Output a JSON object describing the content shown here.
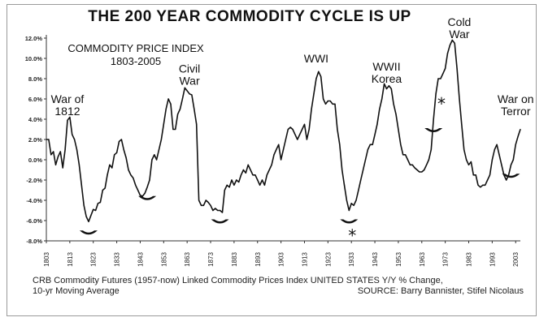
{
  "title": "THE 200 YEAR COMMODITY CYCLE IS UP",
  "index_label_line1": "COMMODITY PRICE INDEX",
  "index_label_line2": "1803-2005",
  "caption_line1": "CRB Commodity Futures (1957-now) Linked Commodity Prices Index UNITED STATES Y/Y % Change,",
  "caption_line2_left": "10-yr Moving Average",
  "caption_line2_right": "SOURCE:  Barry Bannister, Stifel Nicolaus",
  "asterisk": "*",
  "colors": {
    "line": "#111111",
    "frame": "#9a9a9a",
    "background": "#ffffff"
  },
  "chart_data": {
    "type": "line",
    "title": "THE 200 YEAR COMMODITY CYCLE IS UP",
    "xlabel": "",
    "ylabel": "",
    "xlim": [
      1803,
      2005
    ],
    "ylim": [
      -8.0,
      12.0
    ],
    "grid": false,
    "x_ticks": [
      "1803",
      "1813",
      "1823",
      "1833",
      "1843",
      "1853",
      "1863",
      "1873",
      "1883",
      "1893",
      "1903",
      "1913",
      "1923",
      "1933",
      "1943",
      "1953",
      "1963",
      "1973",
      "1983",
      "1993",
      "2003"
    ],
    "y_ticks": [
      "12.0%",
      "10.0%",
      "8.0%",
      "6.0%",
      "4.0%",
      "2.0%",
      "0.0%",
      "-2.0%",
      "-4.0%",
      "-6.0%",
      "-8.0%"
    ],
    "annotations": [
      {
        "text": "War of",
        "line2": "1812",
        "x": 1812,
        "y": 5.6
      },
      {
        "text": "Civil",
        "line2": "War",
        "x": 1864,
        "y": 8.6
      },
      {
        "text": "WWI",
        "x": 1918,
        "y": 9.6
      },
      {
        "text": "WWII",
        "line2": "Korea",
        "x": 1948,
        "y": 8.8
      },
      {
        "text": "Cold",
        "line2": "War",
        "x": 1979,
        "y": 13.2
      },
      {
        "text": "War on",
        "line2": "Terror",
        "x": 2003,
        "y": 5.6
      }
    ],
    "troughs": [
      1821,
      1846,
      1877,
      1932,
      1968,
      2001
    ],
    "asterisk_years": [
      1932,
      1970
    ],
    "series": [
      {
        "x": [
          1803,
          1804,
          1805,
          1806,
          1807,
          1808,
          1809,
          1810,
          1811,
          1812,
          1813,
          1814,
          1815,
          1816,
          1817,
          1818,
          1819,
          1820,
          1821,
          1822,
          1823,
          1824,
          1825,
          1826,
          1827,
          1828,
          1829,
          1830,
          1831,
          1832,
          1833,
          1834,
          1835,
          1836,
          1837,
          1838,
          1839,
          1840,
          1841,
          1842,
          1843,
          1844,
          1845,
          1846,
          1847,
          1848,
          1849,
          1850,
          1851,
          1852,
          1853,
          1854,
          1855,
          1856,
          1857,
          1858,
          1859,
          1860,
          1861,
          1862,
          1863,
          1864,
          1865,
          1866,
          1867,
          1868,
          1869,
          1870,
          1871,
          1872,
          1873,
          1874,
          1875,
          1876,
          1877,
          1878,
          1879,
          1880,
          1881,
          1882,
          1883,
          1884,
          1885,
          1886,
          1887,
          1888,
          1889,
          1890,
          1891,
          1892,
          1893,
          1894,
          1895,
          1896,
          1897,
          1898,
          1899,
          1900,
          1901,
          1902,
          1903,
          1904,
          1905,
          1906,
          1907,
          1908,
          1909,
          1910,
          1911,
          1912,
          1913,
          1914,
          1915,
          1916,
          1917,
          1918,
          1919,
          1920,
          1921,
          1922,
          1923,
          1924,
          1925,
          1926,
          1927,
          1928,
          1929,
          1930,
          1931,
          1932,
          1933,
          1934,
          1935,
          1936,
          1937,
          1938,
          1939,
          1940,
          1941,
          1942,
          1943,
          1944,
          1945,
          1946,
          1947,
          1948,
          1949,
          1950,
          1951,
          1952,
          1953,
          1954,
          1955,
          1956,
          1957,
          1958,
          1959,
          1960,
          1961,
          1962,
          1963,
          1964,
          1965,
          1966,
          1967,
          1968,
          1969,
          1970,
          1971,
          1972,
          1973,
          1974,
          1975,
          1976,
          1977,
          1978,
          1979,
          1980,
          1981,
          1982,
          1983,
          1984,
          1985,
          1986,
          1987,
          1988,
          1989,
          1990,
          1991,
          1992,
          1993,
          1994,
          1995,
          1996,
          1997,
          1998,
          1999,
          2000,
          2001,
          2002,
          2003,
          2004,
          2005
        ],
        "values": [
          2.0,
          2.0,
          0.5,
          0.8,
          -0.5,
          0.3,
          0.8,
          -0.8,
          1.0,
          3.9,
          4.2,
          2.5,
          2.0,
          1.0,
          -0.5,
          -2.5,
          -4.5,
          -5.6,
          -6.1,
          -5.5,
          -4.9,
          -5.0,
          -4.3,
          -4.2,
          -3.0,
          -2.8,
          -1.5,
          -0.5,
          -0.8,
          0.5,
          0.7,
          1.8,
          2.0,
          1.0,
          0.2,
          -1.0,
          -1.5,
          -1.8,
          -2.5,
          -3.0,
          -3.5,
          -3.6,
          -3.3,
          -2.7,
          -2.0,
          0.0,
          0.5,
          0.0,
          1.0,
          2.0,
          3.5,
          5.0,
          6.0,
          5.5,
          3.0,
          3.0,
          4.5,
          5.0,
          6.0,
          7.1,
          6.8,
          6.5,
          6.4,
          5.0,
          3.5,
          -4.0,
          -4.5,
          -4.5,
          -4.0,
          -4.2,
          -4.5,
          -5.0,
          -4.8,
          -5.0,
          -5.0,
          -5.2,
          -3.0,
          -2.5,
          -2.7,
          -2.0,
          -2.5,
          -2.0,
          -2.2,
          -1.5,
          -1.0,
          -1.3,
          -0.5,
          -1.0,
          -1.5,
          -1.5,
          -2.0,
          -2.5,
          -2.0,
          -2.5,
          -1.5,
          -1.0,
          -0.5,
          0.5,
          1.0,
          1.5,
          0.0,
          1.0,
          2.0,
          3.0,
          3.2,
          3.0,
          2.5,
          2.0,
          2.5,
          3.0,
          3.5,
          2.0,
          3.0,
          5.0,
          6.5,
          8.0,
          8.7,
          8.2,
          6.0,
          5.5,
          5.8,
          5.8,
          5.5,
          5.5,
          3.0,
          1.5,
          -1.0,
          -2.5,
          -4.0,
          -5.0,
          -4.3,
          -4.5,
          -4.0,
          -3.0,
          -2.0,
          -1.0,
          0.0,
          1.0,
          1.5,
          1.5,
          2.5,
          3.5,
          5.0,
          6.0,
          7.5,
          7.0,
          7.3,
          7.0,
          5.5,
          4.5,
          3.0,
          1.5,
          0.5,
          0.5,
          0.0,
          -0.5,
          -0.5,
          -0.8,
          -1.0,
          -1.2,
          -1.2,
          -1.0,
          -0.5,
          0.0,
          1.0,
          4.0,
          6.5,
          8.0,
          8.0,
          8.5,
          9.0,
          10.5,
          11.3,
          11.8,
          11.5,
          9.0,
          6.0,
          3.5,
          1.0,
          0.0,
          -0.5,
          -0.2,
          -1.5,
          -1.5,
          -2.5,
          -2.7,
          -2.5,
          -2.5,
          -2.0,
          -1.5,
          0.0,
          1.0,
          1.5,
          0.5,
          -0.5,
          -1.5,
          -2.0,
          -1.5,
          -0.5,
          0.0,
          1.5,
          2.3,
          3.0
        ]
      }
    ]
  }
}
